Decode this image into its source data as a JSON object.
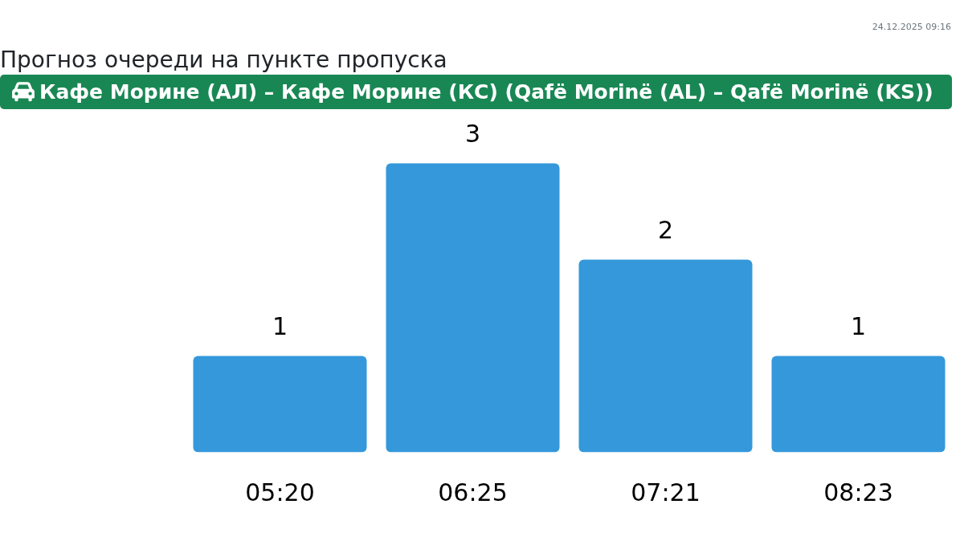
{
  "chart_data": {
    "type": "bar",
    "title": "Прогноз очереди на пункте пропуска",
    "subtitle": "Кафе Морине (АЛ) – Кафе Морине (КС) (Qafë Morinë (AL) – Qafë Morinë (KS))",
    "annotations": [
      "24.12.2025 09:16"
    ],
    "categories": [
      "05:20",
      "06:25",
      "07:21",
      "08:23"
    ],
    "values": [
      1,
      3,
      2,
      1
    ],
    "color": "#3498db",
    "data_labels": true
  }
}
